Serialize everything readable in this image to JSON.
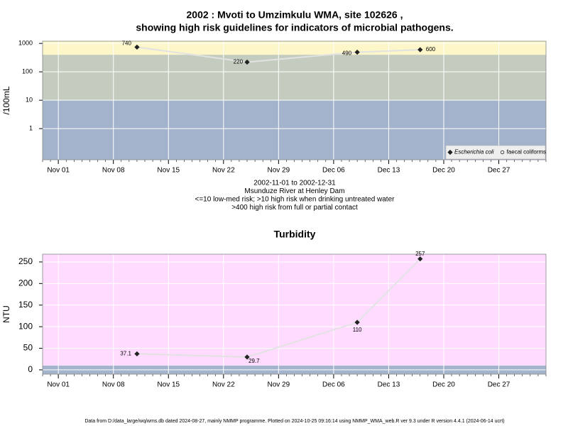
{
  "chart_data": [
    {
      "type": "line",
      "title": [
        "2002 : Mvoti to Umzimkulu WMA, site 102626 ,",
        "showing high risk guidelines for indicators of microbial pathogens."
      ],
      "notes": [
        "2002-11-01 to 2002-12-31",
        "Msunduze River at Henley Dam",
        "<=10 low-med risk; >10 high risk when drinking untreated water",
        ">400 high risk from full or partial contact"
      ],
      "ylabel": "/100mL",
      "log_scale": true,
      "ylim": [
        0.08,
        1200
      ],
      "yticks": [
        1,
        10,
        100,
        1000
      ],
      "xlim": [
        "2002-10-30",
        "2003-01-02"
      ],
      "xticks": [
        {
          "value": "2002-11-01",
          "label": "Nov 01"
        },
        {
          "value": "2002-11-08",
          "label": "Nov 08"
        },
        {
          "value": "2002-11-15",
          "label": "Nov 15"
        },
        {
          "value": "2002-11-22",
          "label": "Nov 22"
        },
        {
          "value": "2002-11-29",
          "label": "Nov 29"
        },
        {
          "value": "2002-12-06",
          "label": "Dec 06"
        },
        {
          "value": "2002-12-13",
          "label": "Dec 13"
        },
        {
          "value": "2002-12-20",
          "label": "Dec 20"
        },
        {
          "value": "2002-12-27",
          "label": "Dec 27"
        }
      ],
      "grid": true,
      "thresholds": [
        10,
        400
      ],
      "band_colors": [
        "#a3b3cc",
        "#c4ccbf",
        "#fcf6c9"
      ],
      "legend": "lower right",
      "series": [
        {
          "name": "Escherichia coli",
          "color": "#222222",
          "marker": "diamond",
          "x": [
            "2002-11-11",
            "2002-11-25",
            "2002-12-09",
            "2002-12-17"
          ],
          "values": [
            740,
            220,
            490,
            600
          ]
        },
        {
          "name": "faecal coliforms",
          "color": "#222222",
          "marker": "circle",
          "x": [],
          "values": []
        }
      ]
    },
    {
      "type": "line",
      "title": "Turbidity",
      "ylabel": "NTU",
      "log_scale": false,
      "ylim": [
        -10,
        268
      ],
      "yticks": [
        0,
        50,
        100,
        150,
        200,
        250
      ],
      "xlim": [
        "2002-10-30",
        "2003-01-02"
      ],
      "xticks": [
        {
          "value": "2002-11-01",
          "label": "Nov 01"
        },
        {
          "value": "2002-11-08",
          "label": "Nov 08"
        },
        {
          "value": "2002-11-15",
          "label": "Nov 15"
        },
        {
          "value": "2002-11-22",
          "label": "Nov 22"
        },
        {
          "value": "2002-11-29",
          "label": "Nov 29"
        },
        {
          "value": "2002-12-06",
          "label": "Dec 06"
        },
        {
          "value": "2002-12-13",
          "label": "Dec 13"
        },
        {
          "value": "2002-12-20",
          "label": "Dec 20"
        },
        {
          "value": "2002-12-27",
          "label": "Dec 27"
        }
      ],
      "grid": true,
      "thresholds": [
        10
      ],
      "band_colors": [
        "#a3b3cc",
        "#ffdcff"
      ],
      "series": [
        {
          "name": "Turbidity",
          "color": "#222222",
          "marker": "diamond",
          "x": [
            "2002-11-11",
            "2002-11-25",
            "2002-12-09",
            "2002-12-17"
          ],
          "values": [
            37.1,
            29.7,
            110,
            257
          ]
        }
      ]
    }
  ],
  "footer": "Data from D:/data_large/wq/wms.db dated 2024-08-27, mainly NMMP programme. Plotted on 2024-10-25 09:16:14 using NMMP_WMA_web.R ver 9.3 under R version 4.4.1 (2024-06-14 ucrt)"
}
